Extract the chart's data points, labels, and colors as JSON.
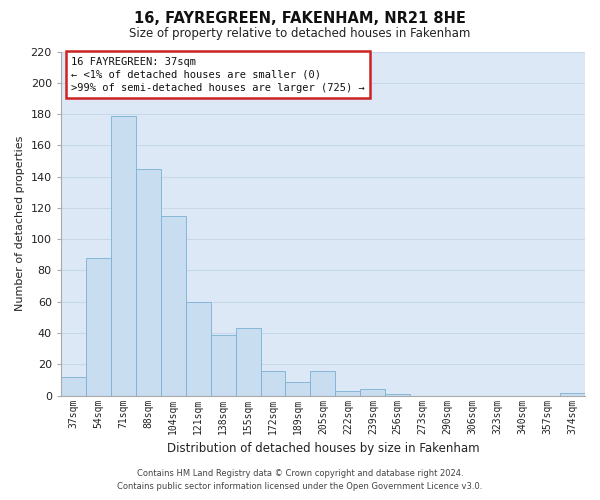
{
  "title": "16, FAYREGREEN, FAKENHAM, NR21 8HE",
  "subtitle": "Size of property relative to detached houses in Fakenham",
  "xlabel": "Distribution of detached houses by size in Fakenham",
  "ylabel": "Number of detached properties",
  "bar_labels": [
    "37sqm",
    "54sqm",
    "71sqm",
    "88sqm",
    "104sqm",
    "121sqm",
    "138sqm",
    "155sqm",
    "172sqm",
    "189sqm",
    "205sqm",
    "222sqm",
    "239sqm",
    "256sqm",
    "273sqm",
    "290sqm",
    "306sqm",
    "323sqm",
    "340sqm",
    "357sqm",
    "374sqm"
  ],
  "bar_values": [
    12,
    88,
    179,
    145,
    115,
    60,
    39,
    43,
    16,
    9,
    16,
    3,
    4,
    1,
    0,
    0,
    0,
    0,
    0,
    0,
    2
  ],
  "bar_color": "#c8ddf0",
  "bar_edge_color": "#7ab0d4",
  "ylim": [
    0,
    220
  ],
  "yticks": [
    0,
    20,
    40,
    60,
    80,
    100,
    120,
    140,
    160,
    180,
    200,
    220
  ],
  "annotation_title": "16 FAYREGREEN: 37sqm",
  "annotation_line1": "← <1% of detached houses are smaller (0)",
  "annotation_line2": ">99% of semi-detached houses are larger (725) →",
  "annotation_box_facecolor": "#ffffff",
  "annotation_box_edgecolor": "#cc2222",
  "footer_line1": "Contains HM Land Registry data © Crown copyright and database right 2024.",
  "footer_line2": "Contains public sector information licensed under the Open Government Licence v3.0.",
  "grid_color": "#c8d8e8",
  "background_color": "#dce8f5"
}
